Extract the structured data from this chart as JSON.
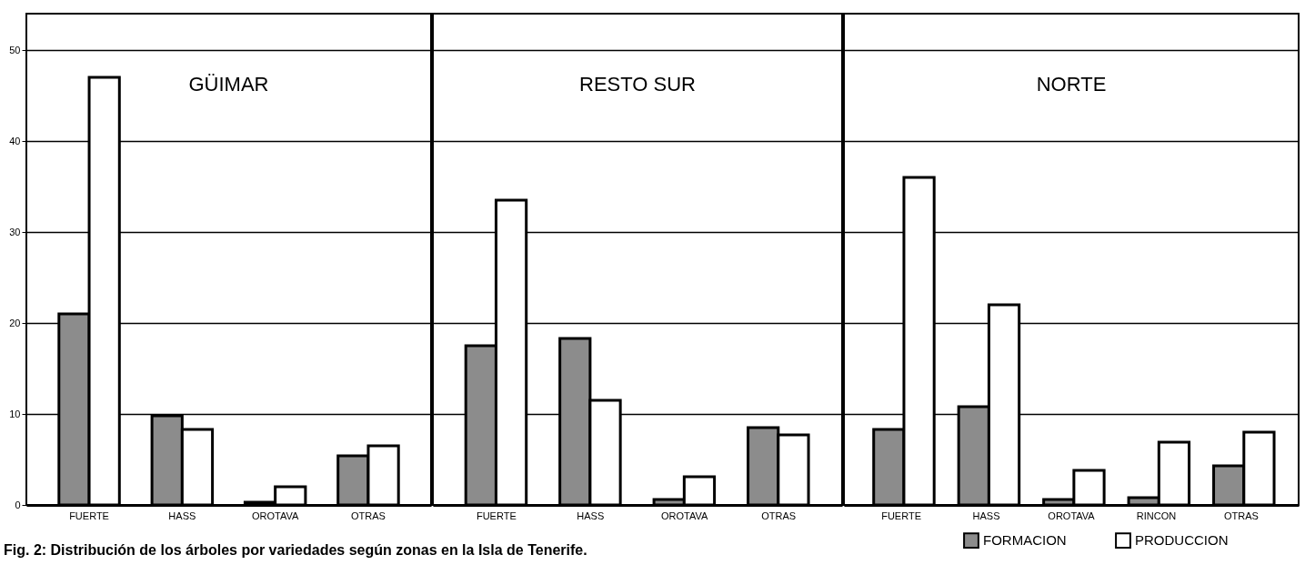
{
  "chart_data": [
    {
      "type": "bar",
      "title": "GÜIMAR",
      "categories": [
        "FUERTE",
        "HASS",
        "OROTAVA",
        "OTRAS"
      ],
      "series": [
        {
          "name": "FORMACION",
          "color": "#8c8c8c",
          "values": [
            21,
            9.8,
            0.3,
            5.4
          ]
        },
        {
          "name": "PRODUCCION",
          "color": "#ffffff",
          "values": [
            47,
            8.3,
            2,
            6.5
          ]
        }
      ],
      "ylim": [
        0,
        54
      ],
      "yticks": [
        0,
        10,
        20,
        30,
        40,
        50
      ],
      "grid": "y",
      "legend": "bottom right",
      "annotations": [
        "Fig. 2: Distribución de los árboles por variedades según zonas en la Isla de Tenerife."
      ]
    },
    {
      "type": "bar",
      "title": "RESTO SUR",
      "categories": [
        "FUERTE",
        "HASS",
        "OROTAVA",
        "OTRAS"
      ],
      "series": [
        {
          "name": "FORMACION",
          "color": "#8c8c8c",
          "values": [
            17.5,
            18.3,
            0.6,
            8.5
          ]
        },
        {
          "name": "PRODUCCION",
          "color": "#ffffff",
          "values": [
            33.5,
            11.5,
            3.1,
            7.7
          ]
        }
      ],
      "ylim": [
        0,
        54
      ],
      "yticks": [
        0,
        10,
        20,
        30,
        40,
        50
      ],
      "grid": "y",
      "tick_labels": "x",
      "legend": "bottom right"
    },
    {
      "type": "bar",
      "title": "NORTE",
      "categories": [
        "FUERTE",
        "HASS",
        "OROTAVA",
        "RINCON",
        "OTRAS"
      ],
      "series": [
        {
          "name": "FORMACION",
          "color": "#8c8c8c",
          "values": [
            8.3,
            10.8,
            0.6,
            0.8,
            4.3
          ]
        },
        {
          "name": "PRODUCCION",
          "color": "#ffffff",
          "values": [
            36,
            22,
            3.8,
            6.9,
            8
          ]
        }
      ],
      "ylim": [
        0,
        54
      ],
      "yticks": [
        0,
        10,
        20,
        30,
        40,
        50
      ],
      "grid": "y",
      "tick_labels": "x",
      "legend": "bottom right"
    }
  ]
}
